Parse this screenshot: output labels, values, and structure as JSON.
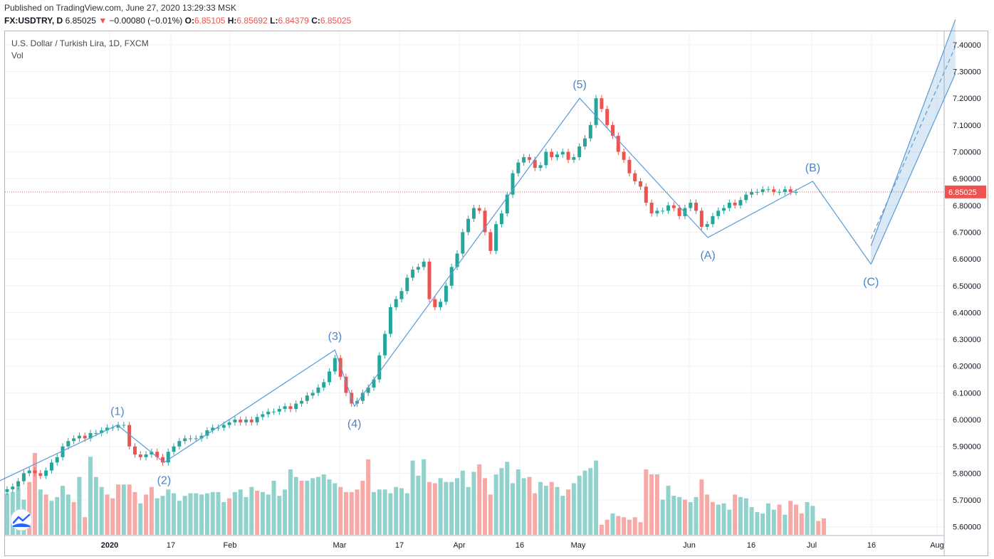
{
  "header": {
    "published": "Published on TradingView.com, June 27, 2020 13:29:33 MSK",
    "symbol": "FX:USDTRY, D",
    "last": "6.85025",
    "arrow": "▼",
    "change": "−0.00080 (−0.01%)",
    "o_label": "O:",
    "o_value": "6.85105",
    "h_label": "H:",
    "h_value": "6.85692",
    "l_label": "L:",
    "l_value": "6.84379",
    "c_label": "C:",
    "c_value": "6.85025"
  },
  "legend": {
    "title": "U.S. Dollar / Turkish Lira, 1D, FXCM",
    "vol_label": "Vol"
  },
  "chart_data": {
    "type": "candlestick",
    "title": "U.S. Dollar / Turkish Lira, 1D, FXCM",
    "y_axis_ticks": [
      "7.40000",
      "7.30000",
      "7.20000",
      "7.10000",
      "7.00000",
      "6.90000",
      "6.80000",
      "6.70000",
      "6.60000",
      "6.50000",
      "6.40000",
      "6.30000",
      "6.20000",
      "6.10000",
      "6.00000",
      "5.90000",
      "5.80000",
      "5.70000",
      "5.60000"
    ],
    "ylim": [
      5.57,
      7.45
    ],
    "x_axis_ticks": [
      "2020",
      "17",
      "Feb",
      "Mar",
      "17",
      "Apr",
      "16",
      "May",
      "Jun",
      "16",
      "Jul",
      "16",
      "Aug"
    ],
    "last_price": "6.85025",
    "colors": {
      "up": "#26a69a",
      "down": "#ef5350",
      "vol_up": "#92d2cc",
      "vol_down": "#f7a9a7",
      "wave": "#5b9bd5",
      "last_line": "#ef5350"
    },
    "close_series": [
      5.74,
      5.75,
      5.77,
      5.8,
      5.81,
      5.8,
      5.79,
      5.81,
      5.84,
      5.86,
      5.9,
      5.92,
      5.93,
      5.94,
      5.93,
      5.95,
      5.95,
      5.96,
      5.97,
      5.97,
      5.98,
      5.98,
      5.9,
      5.87,
      5.86,
      5.87,
      5.88,
      5.86,
      5.84,
      5.88,
      5.9,
      5.92,
      5.93,
      5.93,
      5.93,
      5.94,
      5.96,
      5.97,
      5.97,
      5.98,
      5.99,
      6.0,
      5.99,
      6.0,
      5.99,
      6.01,
      6.02,
      6.03,
      6.03,
      6.04,
      6.05,
      6.04,
      6.06,
      6.07,
      6.09,
      6.1,
      6.12,
      6.14,
      6.18,
      6.23,
      6.16,
      6.1,
      6.06,
      6.07,
      6.1,
      6.12,
      6.15,
      6.24,
      6.32,
      6.42,
      6.45,
      6.48,
      6.53,
      6.56,
      6.57,
      6.59,
      6.45,
      6.42,
      6.44,
      6.5,
      6.57,
      6.62,
      6.7,
      6.75,
      6.79,
      6.78,
      6.7,
      6.63,
      6.73,
      6.77,
      6.84,
      6.92,
      6.96,
      6.98,
      6.97,
      6.94,
      6.95,
      7.0,
      6.98,
      6.99,
      7.0,
      6.97,
      6.98,
      7.02,
      7.05,
      7.1,
      7.2,
      7.16,
      7.1,
      7.06,
      7.0,
      6.97,
      6.92,
      6.89,
      6.87,
      6.81,
      6.77,
      6.78,
      6.78,
      6.8,
      6.79,
      6.76,
      6.79,
      6.81,
      6.78,
      6.72,
      6.73,
      6.76,
      6.78,
      6.79,
      6.81,
      6.8,
      6.82,
      6.84,
      6.85,
      6.85,
      6.86,
      6.86,
      6.85,
      6.85,
      6.86,
      6.85,
      6.85
    ],
    "volume_series": [
      0.33,
      0.34,
      0.38,
      0.28,
      0.42,
      0.65,
      0.36,
      0.32,
      0.27,
      0.3,
      0.39,
      0.32,
      0.26,
      0.46,
      0.14,
      0.62,
      0.46,
      0.38,
      0.32,
      0.29,
      0.4,
      0.4,
      0.4,
      0.34,
      0.25,
      0.32,
      0.38,
      0.29,
      0.31,
      0.36,
      0.33,
      0.27,
      0.31,
      0.33,
      0.33,
      0.32,
      0.33,
      0.34,
      0.34,
      0.26,
      0.29,
      0.34,
      0.36,
      0.3,
      0.38,
      0.35,
      0.34,
      0.32,
      0.43,
      0.31,
      0.36,
      0.52,
      0.46,
      0.43,
      0.43,
      0.45,
      0.46,
      0.48,
      0.44,
      0.41,
      0.38,
      0.34,
      0.34,
      0.36,
      0.43,
      0.6,
      0.34,
      0.36,
      0.36,
      0.33,
      0.38,
      0.37,
      0.33,
      0.59,
      0.47,
      0.6,
      0.42,
      0.41,
      0.45,
      0.42,
      0.42,
      0.45,
      0.51,
      0.38,
      0.5,
      0.56,
      0.45,
      0.32,
      0.48,
      0.53,
      0.58,
      0.41,
      0.52,
      0.45,
      0.46,
      0.33,
      0.42,
      0.39,
      0.42,
      0.38,
      0.31,
      0.36,
      0.41,
      0.47,
      0.51,
      0.53,
      0.59,
      0.08,
      0.12,
      0.17,
      0.15,
      0.14,
      0.12,
      0.14,
      0.1,
      0.52,
      0.48,
      0.48,
      0.28,
      0.39,
      0.31,
      0.3,
      0.28,
      0.26,
      0.3,
      0.44,
      0.32,
      0.26,
      0.24,
      0.25,
      0.2,
      0.32,
      0.3,
      0.29,
      0.22,
      0.18,
      0.17,
      0.25,
      0.2,
      0.24,
      0.16,
      0.27,
      0.24,
      0.17,
      0.26,
      0.23,
      0.11,
      0.13
    ],
    "volume_up": [
      1,
      1,
      1,
      1,
      0,
      0,
      1,
      0,
      1,
      1,
      1,
      1,
      0,
      1,
      0,
      1,
      1,
      1,
      0,
      0,
      0,
      1,
      0,
      0,
      1,
      0,
      0,
      1,
      1,
      1,
      1,
      1,
      1,
      1,
      1,
      1,
      1,
      1,
      1,
      1,
      0,
      1,
      1,
      1,
      1,
      0,
      1,
      1,
      1,
      1,
      1,
      1,
      1,
      0,
      1,
      1,
      1,
      1,
      1,
      1,
      0,
      0,
      0,
      0,
      0,
      0,
      1,
      1,
      1,
      1,
      1,
      1,
      1,
      1,
      1,
      1,
      0,
      0,
      1,
      1,
      1,
      1,
      1,
      1,
      1,
      0,
      0,
      0,
      1,
      1,
      1,
      1,
      1,
      1,
      0,
      0,
      1,
      1,
      0,
      1,
      1,
      0,
      1,
      1,
      1,
      1,
      1,
      0,
      0,
      1,
      0,
      0,
      0,
      0,
      0,
      0,
      0,
      0,
      1,
      1,
      1,
      1,
      0,
      1,
      1,
      0,
      0,
      0,
      1,
      1,
      1,
      0,
      1,
      1,
      1,
      1,
      1,
      1,
      1,
      0,
      1,
      0,
      0,
      0,
      1,
      1
    ],
    "wave_points": [
      {
        "label": "(1)",
        "date": "2020-01-03",
        "value": 5.98
      },
      {
        "label": "(2)",
        "date": "2020-01-15",
        "value": 5.84
      },
      {
        "label": "(3)",
        "date": "2020-02-28",
        "value": 6.26
      },
      {
        "label": "(4)",
        "date": "2020-03-04",
        "value": 6.05
      },
      {
        "label": "(5)",
        "date": "2020-05-01",
        "value": 7.2
      },
      {
        "label": "(A)",
        "date": "2020-06-03",
        "value": 6.68
      },
      {
        "label": "(B)",
        "date": "2020-06-30",
        "value": 6.89
      },
      {
        "label": "(C)",
        "date": "2020-07-15",
        "value": 6.58
      }
    ],
    "projection_channel": {
      "from": {
        "date": "2020-07-15",
        "value": 6.58
      },
      "to": {
        "date": "2020-08-05",
        "value": 7.42
      }
    }
  }
}
